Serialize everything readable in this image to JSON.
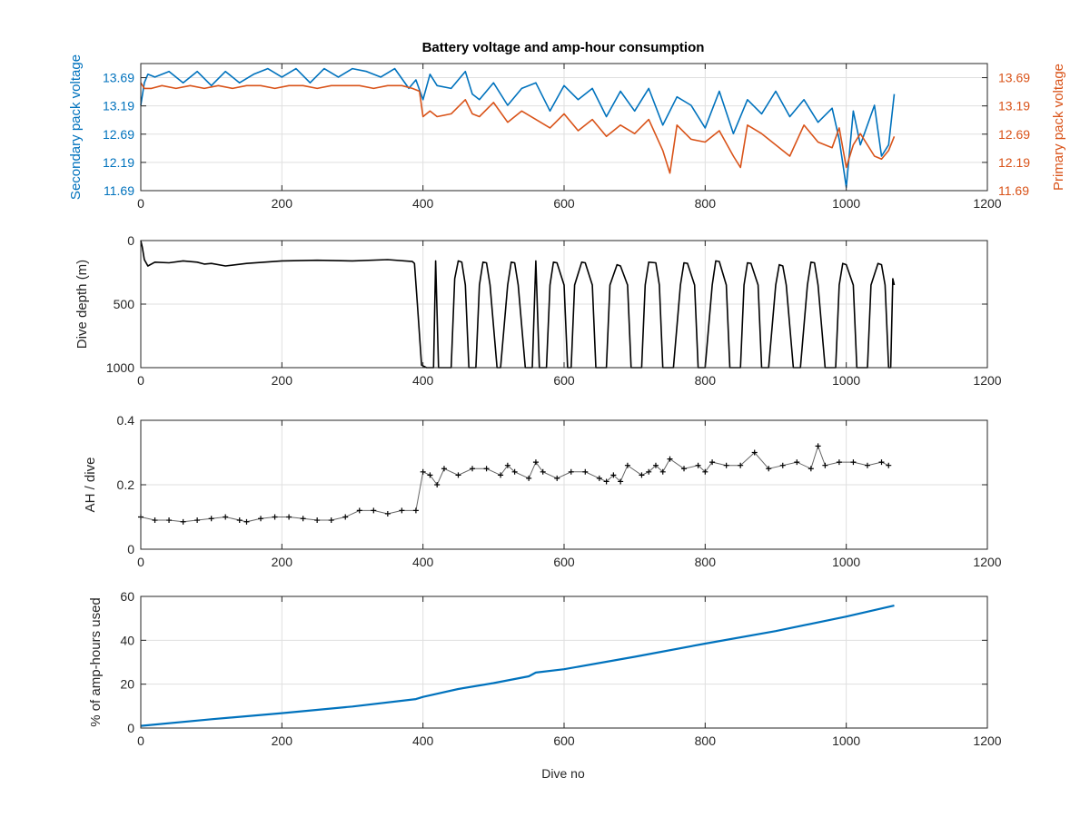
{
  "figure": {
    "title": "Battery voltage and amp-hour consumption",
    "x_label_bottom": "Dive no"
  },
  "colors": {
    "secondary": "#0072bd",
    "primary": "#d95319",
    "black": "#000000",
    "grid": "#dfdfdf",
    "axis": "#262626"
  },
  "chart_data": [
    {
      "type": "line",
      "x_ticks": [
        "0",
        "200",
        "400",
        "600",
        "800",
        "1000",
        "1200"
      ],
      "xlim": [
        0,
        1200
      ],
      "ylabel_left": "Secondary pack voltage",
      "ylabel_right": "Primary pack voltage",
      "ylim": [
        11.69,
        13.94
      ],
      "y_ticks_left": [
        "11.69",
        "12.19",
        "12.69",
        "13.19",
        "13.69"
      ],
      "y_ticks_right": [
        "11.69",
        "12.19",
        "12.69",
        "13.19",
        "13.69"
      ],
      "series": [
        {
          "axis": "left",
          "x": [
            0,
            5,
            10,
            20,
            40,
            60,
            80,
            100,
            120,
            140,
            160,
            180,
            200,
            220,
            240,
            260,
            280,
            300,
            320,
            340,
            360,
            380,
            390,
            400,
            410,
            420,
            440,
            460,
            470,
            480,
            500,
            520,
            540,
            560,
            580,
            600,
            620,
            640,
            660,
            680,
            700,
            720,
            740,
            760,
            780,
            800,
            820,
            840,
            860,
            880,
            900,
            920,
            940,
            960,
            980,
            990,
            1000,
            1010,
            1020,
            1040,
            1050,
            1060,
            1068
          ],
          "y": [
            13.2,
            13.6,
            13.75,
            13.7,
            13.8,
            13.6,
            13.8,
            13.55,
            13.8,
            13.6,
            13.75,
            13.85,
            13.7,
            13.85,
            13.6,
            13.85,
            13.7,
            13.85,
            13.8,
            13.7,
            13.85,
            13.5,
            13.65,
            13.3,
            13.75,
            13.55,
            13.5,
            13.8,
            13.4,
            13.3,
            13.6,
            13.2,
            13.5,
            13.6,
            13.1,
            13.55,
            13.3,
            13.5,
            13.0,
            13.45,
            13.1,
            13.5,
            12.85,
            13.35,
            13.2,
            12.8,
            13.45,
            12.7,
            13.3,
            13.05,
            13.45,
            13.0,
            13.3,
            12.9,
            13.15,
            12.6,
            11.75,
            13.1,
            12.5,
            13.2,
            12.3,
            12.5,
            13.4
          ]
        },
        {
          "axis": "right",
          "x": [
            0,
            5,
            15,
            30,
            50,
            70,
            90,
            110,
            130,
            150,
            170,
            190,
            210,
            230,
            250,
            270,
            290,
            310,
            330,
            350,
            370,
            385,
            395,
            400,
            410,
            420,
            440,
            460,
            470,
            480,
            500,
            520,
            540,
            560,
            580,
            600,
            620,
            640,
            660,
            680,
            700,
            720,
            740,
            750,
            760,
            780,
            800,
            820,
            840,
            850,
            860,
            880,
            900,
            920,
            940,
            960,
            980,
            990,
            1000,
            1010,
            1020,
            1040,
            1050,
            1060,
            1068
          ],
          "y": [
            13.6,
            13.5,
            13.5,
            13.55,
            13.5,
            13.55,
            13.5,
            13.55,
            13.5,
            13.55,
            13.55,
            13.5,
            13.55,
            13.55,
            13.5,
            13.55,
            13.55,
            13.55,
            13.5,
            13.55,
            13.55,
            13.5,
            13.45,
            13.0,
            13.1,
            13.0,
            13.05,
            13.3,
            13.05,
            13.0,
            13.25,
            12.9,
            13.1,
            12.95,
            12.8,
            13.05,
            12.75,
            12.95,
            12.65,
            12.85,
            12.7,
            12.95,
            12.4,
            12.0,
            12.85,
            12.6,
            12.55,
            12.75,
            12.3,
            12.1,
            12.85,
            12.7,
            12.5,
            12.3,
            12.85,
            12.55,
            12.45,
            12.8,
            12.1,
            12.5,
            12.7,
            12.3,
            12.25,
            12.4,
            12.65
          ]
        }
      ]
    },
    {
      "type": "line",
      "ylabel": "Dive depth (m)",
      "ylim": [
        0,
        1000
      ],
      "y_reversed": true,
      "y_ticks": [
        "0",
        "500",
        "1000"
      ],
      "x_ticks": [
        "0",
        "200",
        "400",
        "600",
        "800",
        "1000",
        "1200"
      ],
      "xlim": [
        0,
        1200
      ],
      "series": [
        {
          "x": [
            0,
            2,
            5,
            10,
            20,
            40,
            60,
            80,
            90,
            100,
            120,
            150,
            200,
            250,
            300,
            350,
            385,
            388,
            392,
            398,
            405,
            410,
            415,
            418,
            422,
            430,
            440,
            445,
            450,
            455,
            460,
            465,
            475,
            480,
            485,
            490,
            495,
            505,
            510,
            520,
            525,
            530,
            535,
            545,
            555,
            560,
            565,
            575,
            580,
            585,
            590,
            600,
            605,
            610,
            615,
            625,
            630,
            640,
            645,
            650,
            660,
            665,
            675,
            680,
            690,
            695,
            700,
            710,
            715,
            720,
            730,
            735,
            740,
            750,
            755,
            765,
            770,
            775,
            785,
            790,
            795,
            800,
            810,
            815,
            820,
            830,
            835,
            840,
            850,
            855,
            860,
            865,
            875,
            880,
            885,
            890,
            900,
            905,
            910,
            915,
            925,
            930,
            935,
            945,
            950,
            955,
            960,
            970,
            975,
            985,
            990,
            995,
            1000,
            1010,
            1015,
            1020,
            1030,
            1035,
            1045,
            1050,
            1055,
            1060,
            1063,
            1066,
            1068
          ],
          "y": [
            0,
            50,
            150,
            200,
            170,
            175,
            160,
            170,
            185,
            180,
            200,
            180,
            160,
            155,
            160,
            150,
            165,
            180,
            500,
            980,
            1000,
            1000,
            1000,
            160,
            1000,
            1000,
            1000,
            300,
            160,
            170,
            350,
            1000,
            1000,
            350,
            170,
            175,
            350,
            1000,
            1000,
            350,
            170,
            175,
            350,
            1000,
            1000,
            160,
            1000,
            1000,
            350,
            170,
            175,
            350,
            1000,
            1000,
            350,
            170,
            175,
            350,
            1000,
            1000,
            1000,
            350,
            190,
            200,
            350,
            1000,
            1000,
            1000,
            350,
            170,
            175,
            350,
            1000,
            1000,
            1000,
            350,
            175,
            180,
            350,
            1000,
            1000,
            1000,
            350,
            160,
            165,
            350,
            1000,
            1000,
            1000,
            350,
            175,
            180,
            350,
            1000,
            1000,
            1000,
            350,
            190,
            200,
            350,
            1000,
            1000,
            1000,
            350,
            170,
            175,
            350,
            1000,
            1000,
            1000,
            350,
            180,
            190,
            350,
            1000,
            1000,
            1000,
            350,
            180,
            190,
            350,
            1000,
            1000,
            300,
            350
          ]
        }
      ]
    },
    {
      "type": "scatter",
      "ylabel": "AH / dive",
      "ylim": [
        0,
        0.4
      ],
      "y_ticks": [
        "0",
        "0.2",
        "0.4"
      ],
      "x_ticks": [
        "0",
        "200",
        "400",
        "600",
        "800",
        "1000",
        "1200"
      ],
      "xlim": [
        0,
        1200
      ],
      "series": [
        {
          "x": [
            0,
            20,
            40,
            60,
            80,
            100,
            120,
            140,
            150,
            170,
            190,
            210,
            230,
            250,
            270,
            290,
            310,
            330,
            350,
            370,
            390,
            400,
            410,
            420,
            430,
            450,
            470,
            490,
            510,
            520,
            530,
            550,
            560,
            570,
            590,
            610,
            630,
            650,
            660,
            670,
            680,
            690,
            710,
            720,
            730,
            740,
            750,
            770,
            790,
            800,
            810,
            830,
            850,
            870,
            890,
            910,
            930,
            950,
            960,
            970,
            990,
            1010,
            1030,
            1050,
            1060
          ],
          "y": [
            0.1,
            0.09,
            0.09,
            0.085,
            0.09,
            0.095,
            0.1,
            0.09,
            0.085,
            0.095,
            0.1,
            0.1,
            0.095,
            0.09,
            0.09,
            0.1,
            0.12,
            0.12,
            0.11,
            0.12,
            0.12,
            0.24,
            0.23,
            0.2,
            0.25,
            0.23,
            0.25,
            0.25,
            0.23,
            0.26,
            0.24,
            0.22,
            0.27,
            0.24,
            0.22,
            0.24,
            0.24,
            0.22,
            0.21,
            0.23,
            0.21,
            0.26,
            0.23,
            0.24,
            0.26,
            0.24,
            0.28,
            0.25,
            0.26,
            0.24,
            0.27,
            0.26,
            0.26,
            0.3,
            0.25,
            0.26,
            0.27,
            0.25,
            0.32,
            0.26,
            0.27,
            0.27,
            0.26,
            0.27,
            0.26
          ]
        }
      ]
    },
    {
      "type": "line",
      "ylabel": "% of amp-hours used",
      "xlabel": "Dive no",
      "ylim": [
        0,
        60
      ],
      "y_ticks": [
        "0",
        "20",
        "40",
        "60"
      ],
      "x_ticks": [
        "0",
        "200",
        "400",
        "600",
        "800",
        "1000",
        "1200"
      ],
      "xlim": [
        0,
        1200
      ],
      "series": [
        {
          "x": [
            0,
            100,
            200,
            300,
            390,
            400,
            450,
            500,
            550,
            560,
            600,
            700,
            800,
            900,
            1000,
            1068
          ],
          "y": [
            1,
            4,
            6.8,
            9.8,
            13.2,
            14.2,
            17.8,
            20.5,
            23.6,
            25.3,
            26.8,
            32.5,
            38.5,
            44.2,
            50.8,
            55.8
          ]
        }
      ]
    }
  ]
}
